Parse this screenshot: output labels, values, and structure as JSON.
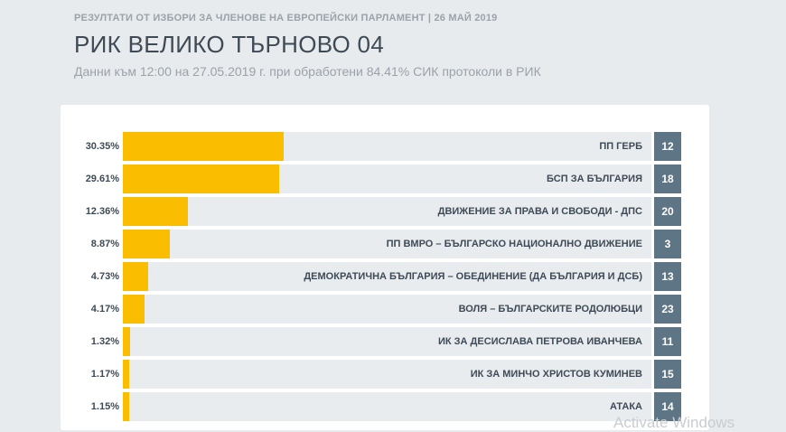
{
  "header": {
    "super_title": "РЕЗУЛТАТИ ОТ ИЗБОРИ ЗА ЧЛЕНОВЕ НА ЕВРОПЕЙСКИ ПАРЛАМЕНТ | 26 МАЙ 2019",
    "title": "РИК ВЕЛИКО ТЪРНОВО 04",
    "subtitle": "Данни към 12:00 на 27.05.2019 г. при обработени 84.41% СИК протоколи в РИК"
  },
  "chart_data": {
    "type": "bar",
    "orientation": "horizontal",
    "xlim": [
      0,
      100
    ],
    "bar_color": "#fbbd00",
    "badge_color": "#5e7586",
    "rows": [
      {
        "percent_label": "30.35%",
        "value": 30.35,
        "party": "ПП ГЕРБ",
        "number": "12"
      },
      {
        "percent_label": "29.61%",
        "value": 29.61,
        "party": "БСП ЗА БЪЛГАРИЯ",
        "number": "18"
      },
      {
        "percent_label": "12.36%",
        "value": 12.36,
        "party": "ДВИЖЕНИЕ ЗА ПРАВА И СВОБОДИ - ДПС",
        "number": "20"
      },
      {
        "percent_label": "8.87%",
        "value": 8.87,
        "party": "ПП ВМРО – БЪЛГАРСКО НАЦИОНАЛНО ДВИЖЕНИЕ",
        "number": "3"
      },
      {
        "percent_label": "4.73%",
        "value": 4.73,
        "party": "ДЕМОКРАТИЧНА БЪЛГАРИЯ – ОБЕДИНЕНИЕ (ДА БЪЛГАРИЯ И ДСБ)",
        "number": "13"
      },
      {
        "percent_label": "4.17%",
        "value": 4.17,
        "party": "ВОЛЯ – БЪЛГАРСКИТЕ РОДОЛЮБЦИ",
        "number": "23"
      },
      {
        "percent_label": "1.32%",
        "value": 1.32,
        "party": "ИК ЗА ДЕСИСЛАВА ПЕТРОВА ИВАНЧЕВА",
        "number": "11"
      },
      {
        "percent_label": "1.17%",
        "value": 1.17,
        "party": "ИК ЗА МИНЧО ХРИСТОВ КУМИНЕВ",
        "number": "15"
      },
      {
        "percent_label": "1.15%",
        "value": 1.15,
        "party": "АТАКА",
        "number": "14"
      }
    ]
  },
  "overlay": {
    "watermark": "Activate Windows"
  }
}
